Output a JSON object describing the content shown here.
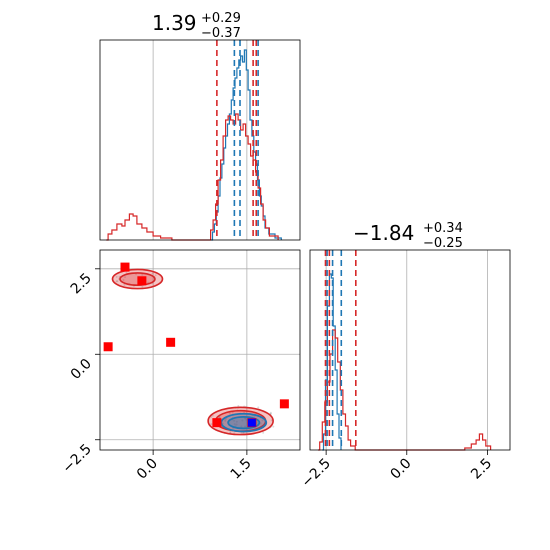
{
  "chart_data": {
    "type": "corner",
    "colors": {
      "sample_a": "#1f77b4",
      "sample_b": "#d62728",
      "marker_red": "#ff0000",
      "marker_blue": "#0000ff",
      "grid": "#b0b0b0"
    },
    "grid": true,
    "param1": {
      "title_value": "1.39",
      "title_plus": "+0.29",
      "title_minus": "−0.37",
      "xlim": [
        -0.85,
        2.35
      ],
      "xticks": [
        0.0,
        1.5
      ],
      "xtick_labels": [
        "0.0",
        "1.5"
      ]
    },
    "param2": {
      "title_value": "−1.84",
      "title_plus": "+0.34",
      "title_minus": "−0.25",
      "xlim": [
        -3.0,
        3.2
      ],
      "xticks": [
        -2.5,
        0.0,
        2.5
      ],
      "xtick_labels": [
        "−2.5",
        "0.0",
        "2.5"
      ],
      "yticks": [
        2.5,
        0.0,
        -2.5
      ],
      "ytick_labels": [
        "2.5",
        "0.0",
        "−2.5"
      ]
    },
    "hist1": {
      "blue_steps": [
        [
          0.93,
          0
        ],
        [
          0.95,
          0.04
        ],
        [
          0.98,
          0.08
        ],
        [
          1.01,
          0.14
        ],
        [
          1.04,
          0.22
        ],
        [
          1.07,
          0.31
        ],
        [
          1.1,
          0.38
        ],
        [
          1.13,
          0.46
        ],
        [
          1.16,
          0.52
        ],
        [
          1.19,
          0.58
        ],
        [
          1.22,
          0.63
        ],
        [
          1.25,
          0.7
        ],
        [
          1.28,
          0.76
        ],
        [
          1.31,
          0.81
        ],
        [
          1.34,
          0.86
        ],
        [
          1.37,
          0.9
        ],
        [
          1.4,
          0.92
        ],
        [
          1.43,
          0.89
        ],
        [
          1.46,
          0.95
        ],
        [
          1.49,
          0.85
        ],
        [
          1.52,
          0.75
        ],
        [
          1.55,
          0.6
        ],
        [
          1.58,
          0.52
        ],
        [
          1.61,
          0.44
        ],
        [
          1.64,
          0.38
        ],
        [
          1.67,
          0.3
        ],
        [
          1.7,
          0.22
        ],
        [
          1.73,
          0.17
        ],
        [
          1.76,
          0.12
        ],
        [
          1.79,
          0.06
        ],
        [
          1.85,
          0.03
        ],
        [
          1.95,
          0.01
        ],
        [
          2.05,
          0
        ]
      ],
      "red_steps": [
        [
          -0.75,
          0
        ],
        [
          -0.72,
          0.03
        ],
        [
          -0.66,
          0.05
        ],
        [
          -0.58,
          0.08
        ],
        [
          -0.5,
          0.07
        ],
        [
          -0.45,
          0.1
        ],
        [
          -0.38,
          0.13
        ],
        [
          -0.32,
          0.12
        ],
        [
          -0.26,
          0.08
        ],
        [
          -0.18,
          0.06
        ],
        [
          -0.1,
          0.04
        ],
        [
          0.0,
          0.02
        ],
        [
          0.12,
          0.01
        ],
        [
          0.3,
          0
        ],
        [
          0.88,
          0
        ],
        [
          0.92,
          0.05
        ],
        [
          0.96,
          0.1
        ],
        [
          1.0,
          0.18
        ],
        [
          1.04,
          0.3
        ],
        [
          1.08,
          0.4
        ],
        [
          1.12,
          0.52
        ],
        [
          1.16,
          0.6
        ],
        [
          1.2,
          0.62
        ],
        [
          1.24,
          0.6
        ],
        [
          1.28,
          0.58
        ],
        [
          1.32,
          0.63
        ],
        [
          1.36,
          0.6
        ],
        [
          1.4,
          0.55
        ],
        [
          1.44,
          0.58
        ],
        [
          1.48,
          0.52
        ],
        [
          1.52,
          0.48
        ],
        [
          1.56,
          0.42
        ],
        [
          1.6,
          0.4
        ],
        [
          1.64,
          0.34
        ],
        [
          1.68,
          0.26
        ],
        [
          1.72,
          0.18
        ],
        [
          1.76,
          0.1
        ],
        [
          1.8,
          0.06
        ],
        [
          1.86,
          0.02
        ],
        [
          2.0,
          0
        ]
      ],
      "blue_quantiles": [
        1.3,
        1.39,
        1.68
      ],
      "red_quantiles": [
        1.02,
        1.6,
        1.65
      ]
    },
    "hist2": {
      "blue_steps": [
        [
          -2.62,
          0
        ],
        [
          -2.58,
          0.08
        ],
        [
          -2.52,
          0.35
        ],
        [
          -2.46,
          0.72
        ],
        [
          -2.4,
          0.88
        ],
        [
          -2.34,
          0.86
        ],
        [
          -2.28,
          0.62
        ],
        [
          -2.22,
          0.4
        ],
        [
          -2.16,
          0.18
        ],
        [
          -2.1,
          0.06
        ],
        [
          -2.04,
          0
        ]
      ],
      "red_steps": [
        [
          -2.75,
          0
        ],
        [
          -2.7,
          0.04
        ],
        [
          -2.62,
          0.14
        ],
        [
          -2.54,
          0.24
        ],
        [
          -2.46,
          0.34
        ],
        [
          -2.38,
          0.48
        ],
        [
          -2.3,
          0.6
        ],
        [
          -2.22,
          0.56
        ],
        [
          -2.14,
          0.44
        ],
        [
          -2.06,
          0.3
        ],
        [
          -1.98,
          0.18
        ],
        [
          -1.9,
          0.12
        ],
        [
          -1.82,
          0.05
        ],
        [
          -1.74,
          0.02
        ],
        [
          -1.6,
          0
        ],
        [
          1.7,
          0
        ],
        [
          1.8,
          0.01
        ],
        [
          2.0,
          0.03
        ],
        [
          2.15,
          0.05
        ],
        [
          2.25,
          0.08
        ],
        [
          2.35,
          0.05
        ],
        [
          2.45,
          0.02
        ],
        [
          2.6,
          0
        ]
      ],
      "blue_quantiles": [
        -2.47,
        -2.3,
        -2.03
      ],
      "red_quantiles": [
        -2.52,
        -2.4,
        -1.58
      ]
    },
    "scatter": {
      "red_squares": [
        [
          -0.72,
          0.22
        ],
        [
          -0.45,
          2.55
        ],
        [
          -0.18,
          2.15
        ],
        [
          0.28,
          0.35
        ],
        [
          1.02,
          -2.0
        ],
        [
          2.1,
          -1.45
        ],
        [
          1.58,
          -2.0
        ]
      ],
      "blue_squares": [
        [
          1.58,
          -2.0
        ]
      ],
      "blue_contours": [
        [
          1.45,
          -2.0,
          0.25,
          0.17
        ],
        [
          1.45,
          -2.0,
          0.36,
          0.26
        ]
      ],
      "red_contours": [
        [
          1.4,
          -1.95,
          0.4,
          0.3
        ],
        [
          1.4,
          -1.95,
          0.52,
          0.4
        ],
        [
          -0.25,
          2.2,
          0.28,
          0.18
        ],
        [
          -0.25,
          2.2,
          0.4,
          0.28
        ]
      ]
    }
  }
}
